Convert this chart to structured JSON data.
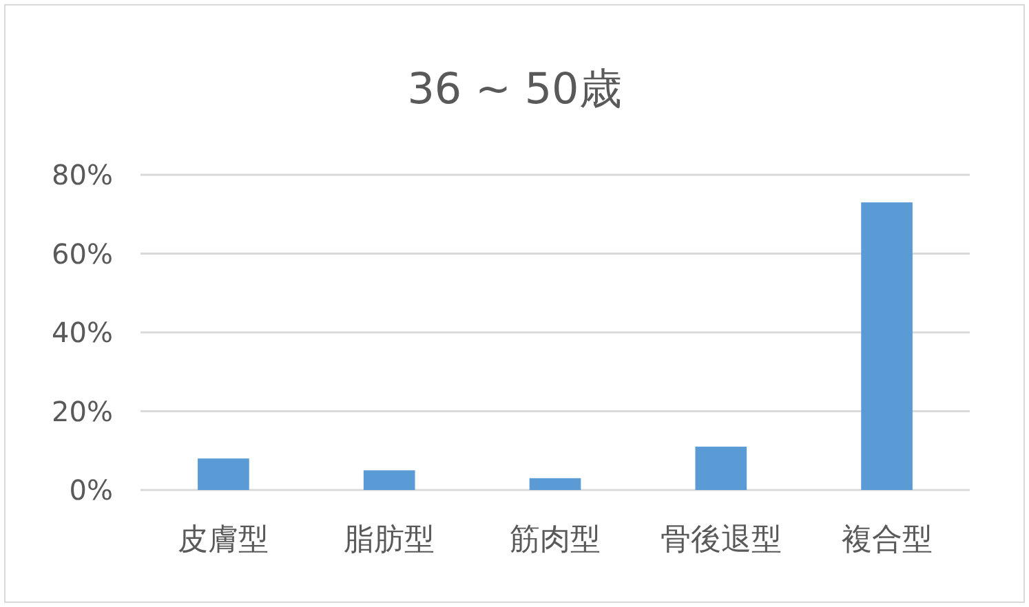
{
  "chart_data": {
    "type": "bar",
    "title": "36 ~ 50歳",
    "categories": [
      "皮膚型",
      "脂肪型",
      "筋肉型",
      "骨後退型",
      "複合型"
    ],
    "values": [
      8,
      5,
      3,
      11,
      73
    ],
    "color": "#5b9bd5",
    "ylim": [
      0,
      80
    ],
    "yticks": [
      {
        "value": 0,
        "label": "0%"
      },
      {
        "value": 20,
        "label": "20%"
      },
      {
        "value": 40,
        "label": "40%"
      },
      {
        "value": 60,
        "label": "60%"
      },
      {
        "value": 80,
        "label": "80%"
      }
    ],
    "grid": "y"
  }
}
